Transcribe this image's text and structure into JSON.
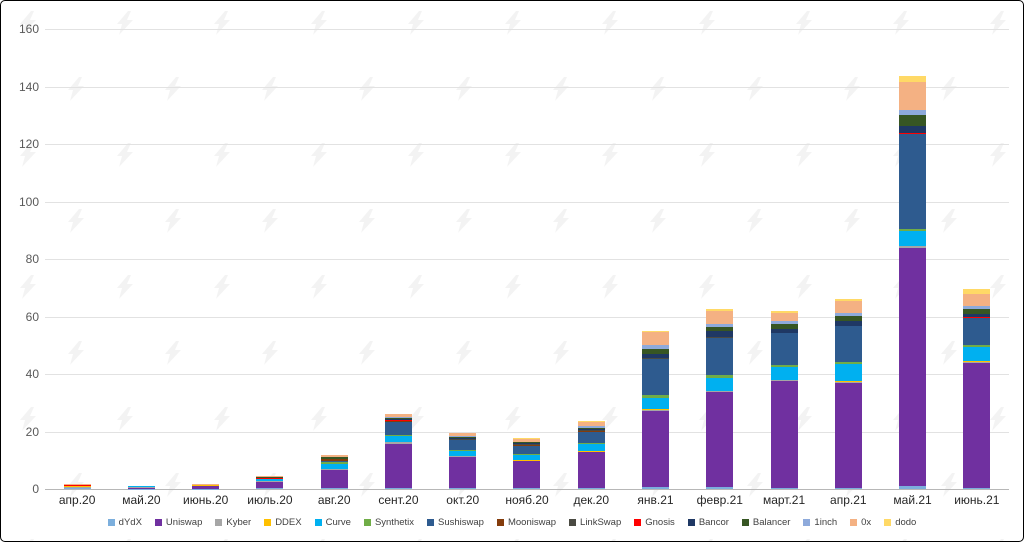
{
  "chart_data": {
    "type": "bar",
    "stacked": true,
    "title": "",
    "xlabel": "",
    "ylabel": "",
    "ylim": [
      0,
      160
    ],
    "yticks": [
      0,
      20,
      40,
      60,
      80,
      100,
      120,
      140,
      160
    ],
    "grid": true,
    "legend_position": "bottom",
    "categories": [
      "апр.20",
      "май.20",
      "июнь.20",
      "июль.20",
      "авг.20",
      "сент.20",
      "окт.20",
      "нояб.20",
      "дек.20",
      "янв.21",
      "февр.21",
      "март.21",
      "апр.21",
      "май.21",
      "июнь.21"
    ],
    "series": [
      {
        "name": "dYdX",
        "color": "#7CAFDD",
        "values": [
          0.2,
          0.1,
          0.1,
          0.2,
          0.2,
          0.3,
          0.2,
          0.2,
          0.3,
          0.6,
          0.7,
          0.5,
          0.5,
          1.0,
          0.5
        ]
      },
      {
        "name": "Uniswap",
        "color": "#7030A0",
        "values": [
          0.3,
          0.4,
          0.9,
          2.2,
          6.5,
          15.5,
          11.0,
          9.5,
          12.5,
          26.5,
          33.0,
          37.0,
          36.5,
          83.0,
          43.5
        ]
      },
      {
        "name": "Kyber",
        "color": "#A6A6A6",
        "values": [
          0.3,
          0.2,
          0.2,
          0.3,
          0.3,
          0.4,
          0.3,
          0.2,
          0.2,
          0.5,
          0.4,
          0.3,
          0.3,
          0.5,
          0.3
        ]
      },
      {
        "name": "DDEX",
        "color": "#FFC000",
        "values": [
          0.1,
          0.1,
          0.1,
          0.1,
          0.1,
          0.1,
          0.1,
          0.1,
          0.1,
          0.1,
          0.1,
          0.1,
          0.1,
          0.1,
          0.1
        ]
      },
      {
        "name": "Curve",
        "color": "#00B0F0",
        "values": [
          0.2,
          0.1,
          0.1,
          0.6,
          1.5,
          2.0,
          1.8,
          1.8,
          2.5,
          4.0,
          4.5,
          4.5,
          6.0,
          5.0,
          5.0
        ]
      },
      {
        "name": "Synthetix",
        "color": "#70AD47",
        "values": [
          0.1,
          0.1,
          0.1,
          0.2,
          0.7,
          0.5,
          0.3,
          0.3,
          0.4,
          1.0,
          1.0,
          0.8,
          0.8,
          1.0,
          0.7
        ]
      },
      {
        "name": "Sushiswap",
        "color": "#2E5B8F",
        "values": [
          0,
          0,
          0,
          0,
          0.5,
          4.5,
          3.2,
          3.0,
          4.0,
          12.5,
          13.0,
          11.0,
          12.5,
          33.0,
          9.5
        ]
      },
      {
        "name": "Mooniswap",
        "color": "#843C0C",
        "values": [
          0,
          0,
          0,
          0,
          0.5,
          0.5,
          0.3,
          0.1,
          0.1,
          0.1,
          0,
          0,
          0,
          0,
          0
        ]
      },
      {
        "name": "LinkSwap",
        "color": "#4A4A42",
        "values": [
          0,
          0,
          0,
          0,
          0,
          0,
          0.1,
          0.3,
          0.3,
          0.2,
          0.1,
          0,
          0,
          0,
          0
        ]
      },
      {
        "name": "Gnosis",
        "color": "#FF0000",
        "values": [
          0.1,
          0,
          0,
          0.1,
          0.1,
          0.1,
          0.1,
          0.1,
          0.1,
          0.1,
          0.1,
          0.1,
          0.1,
          0.1,
          0.1
        ]
      },
      {
        "name": "Bancor",
        "color": "#1F3864",
        "values": [
          0,
          0,
          0,
          0.1,
          0.2,
          0.3,
          0.3,
          0.3,
          0.5,
          1.5,
          2.0,
          1.5,
          1.5,
          2.5,
          1.3
        ]
      },
      {
        "name": "Balancer",
        "color": "#375623",
        "values": [
          0,
          0,
          0,
          0.3,
          0.5,
          0.5,
          0.4,
          0.3,
          0.4,
          1.5,
          1.5,
          1.5,
          2.0,
          4.0,
          1.5
        ]
      },
      {
        "name": "1inch",
        "color": "#8EAADB",
        "values": [
          0,
          0,
          0,
          0.1,
          0.1,
          0.2,
          0.2,
          0.3,
          0.5,
          1.5,
          1.0,
          1.0,
          1.0,
          1.5,
          1.0
        ]
      },
      {
        "name": "0x",
        "color": "#F4B183",
        "values": [
          0.3,
          0.2,
          0.1,
          0.3,
          0.6,
          1.2,
          1.2,
          1.0,
          1.5,
          4.5,
          4.5,
          3.0,
          4.0,
          10.0,
          4.5
        ]
      },
      {
        "name": "dodo",
        "color": "#FFD966",
        "values": [
          0,
          0,
          0,
          0,
          0,
          0,
          0.1,
          0.1,
          0.2,
          0.5,
          0.8,
          0.7,
          0.7,
          2.0,
          1.5
        ]
      }
    ]
  },
  "watermark": {
    "icon": "forklog-bolt-logo",
    "color": "#000000"
  },
  "layout_colors": {
    "background": "#FFFFFF",
    "gridline": "#E2E2E2",
    "axis_line": "#B7B7B7",
    "tick_text": "#595959",
    "category_text": "#262626",
    "legend_text": "#404040",
    "frame_border": "#000000"
  }
}
